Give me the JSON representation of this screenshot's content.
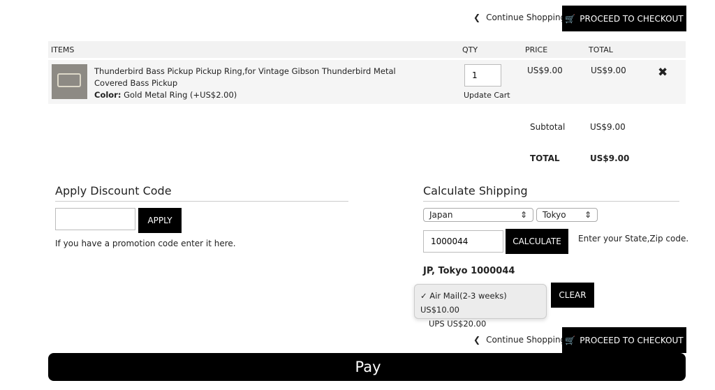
{
  "top": {
    "continue": "Continue Shopping",
    "checkout": "PROCEED TO CHECKOUT"
  },
  "table": {
    "headers": {
      "items": "ITEMS",
      "qty": "QTY",
      "price": "PRICE",
      "total": "TOTAL"
    },
    "rows": [
      {
        "title": "Thunderbird Bass Pickup Pickup Ring,for Vintage Gibson Thunderbird Metal Covered Bass Pickup",
        "option_label": "Color:",
        "option_value": "Gold Metal Ring (+US$2.00)",
        "qty": "1",
        "update": "Update Cart",
        "price": "US$9.00",
        "total": "US$9.00"
      }
    ]
  },
  "summary": {
    "subtotal_label": "Subtotal",
    "subtotal": "US$9.00",
    "total_label": "TOTAL",
    "total": "US$9.00"
  },
  "discount": {
    "title": "Apply Discount Code",
    "value": "",
    "apply": "APPLY",
    "hint": "If you have a promotion code enter it here."
  },
  "shipping": {
    "title": "Calculate Shipping",
    "country": "Japan",
    "state": "Tokyo",
    "zip": "1000044",
    "calculate": "CALCULATE",
    "hint": "Enter your State,Zip code.",
    "address": "JP, Tokyo 1000044",
    "options": [
      {
        "label": "Air Mail(2-3 weeks) US$10.00",
        "selected": true
      },
      {
        "label": "UPS US$20.00",
        "selected": false
      }
    ],
    "clear": "CLEAR"
  },
  "bottom": {
    "continue": "Continue Shopping",
    "checkout": "PROCEED TO CHECKOUT",
    "applepay": "Pay"
  }
}
